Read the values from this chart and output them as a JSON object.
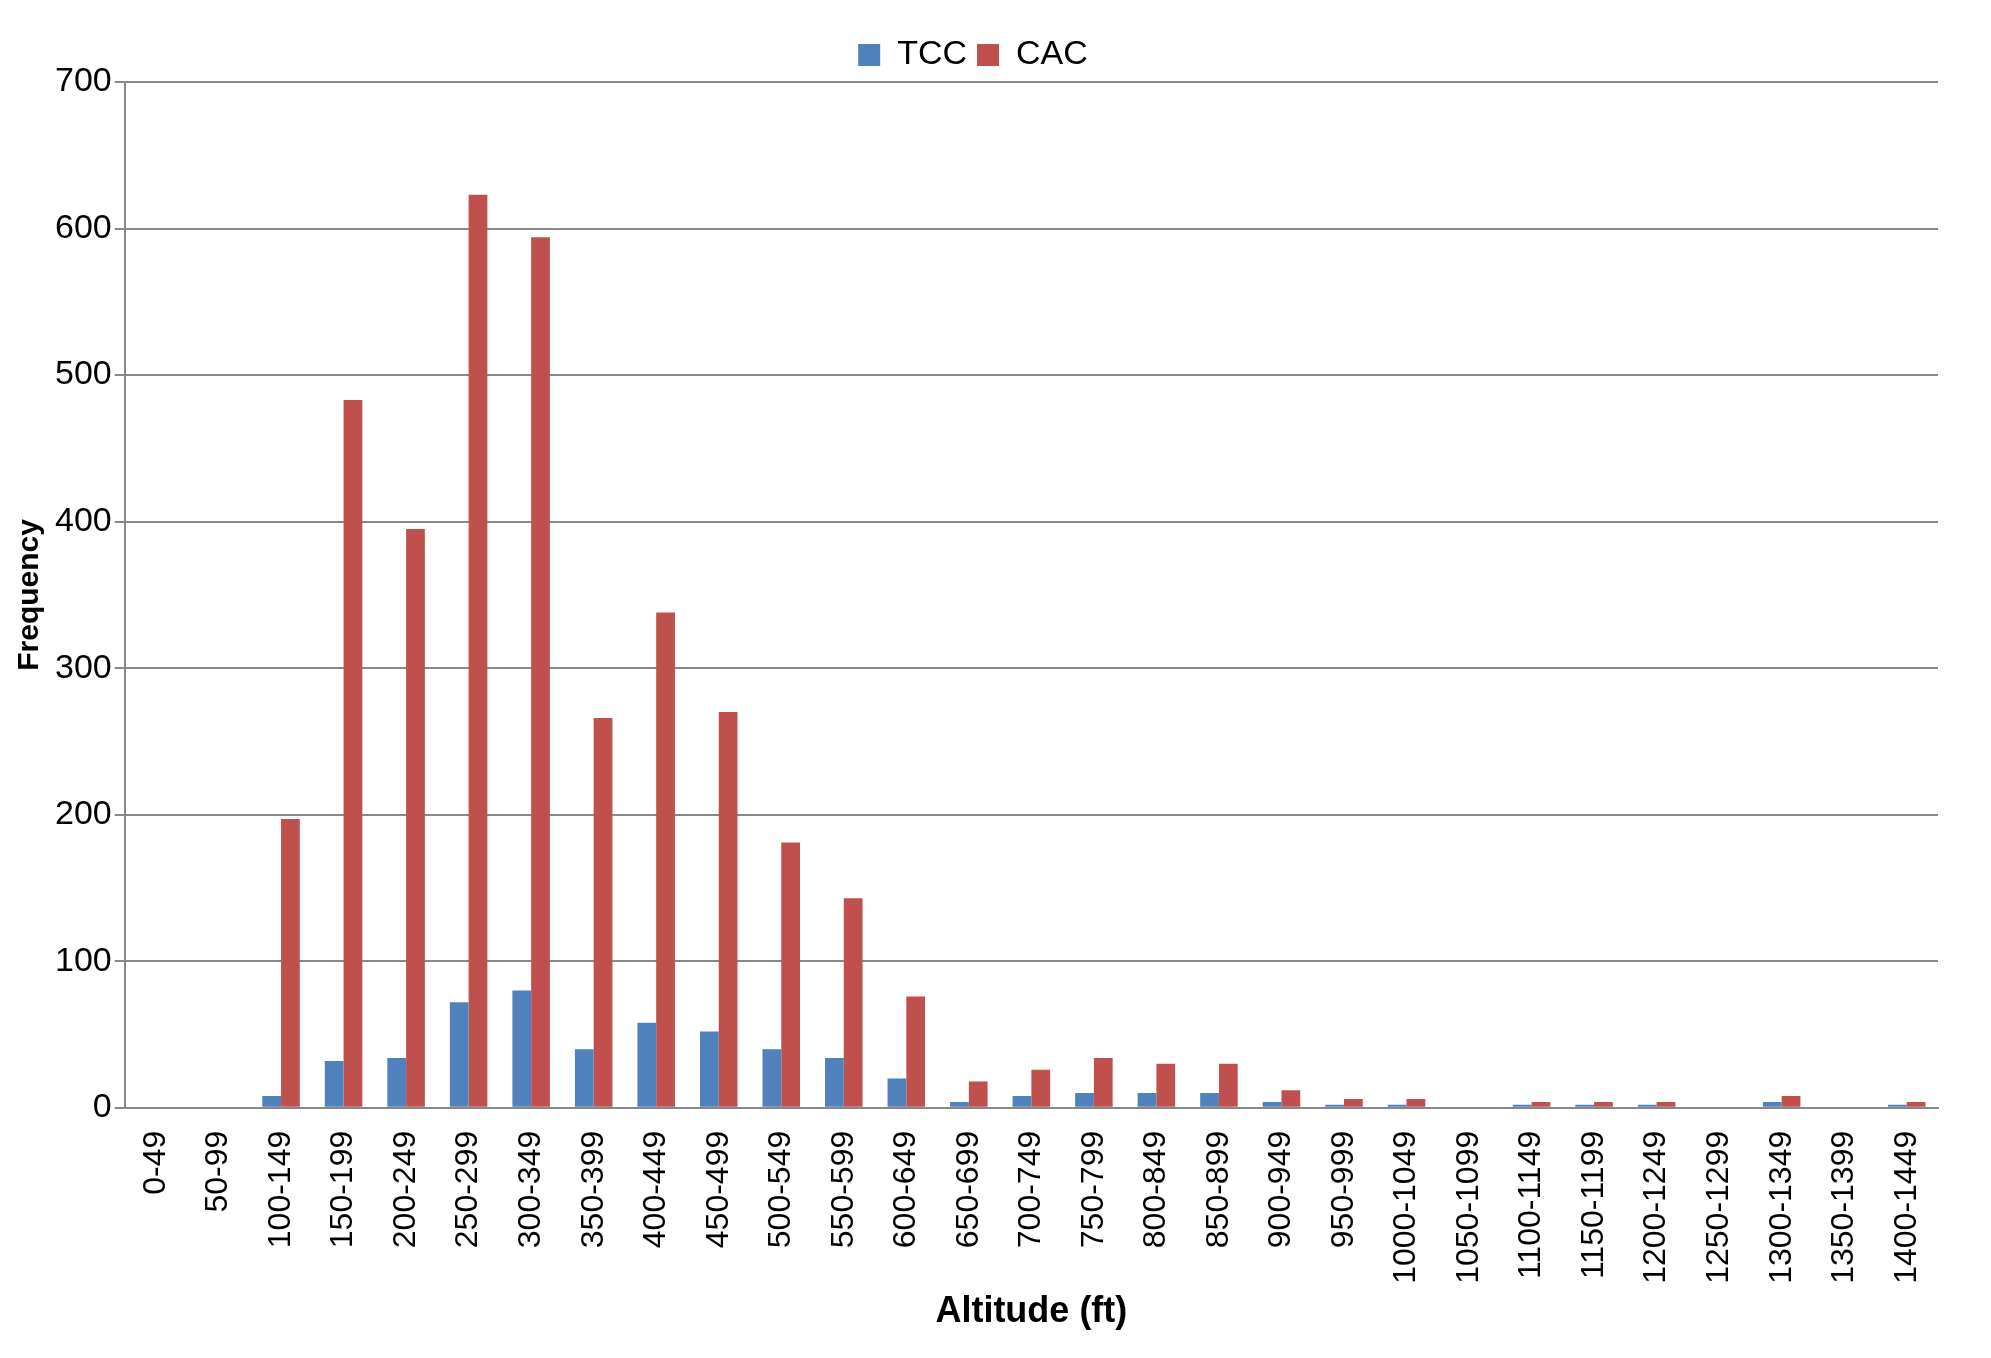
{
  "chart_data": {
    "type": "bar",
    "xlabel": "Altitude (ft)",
    "ylabel": "Frequency",
    "categories": [
      "0-49",
      "50-99",
      "100-149",
      "150-199",
      "200-249",
      "250-299",
      "300-349",
      "350-399",
      "400-449",
      "450-499",
      "500-549",
      "550-599",
      "600-649",
      "650-699",
      "700-749",
      "750-799",
      "800-849",
      "850-899",
      "900-949",
      "950-999",
      "1000-1049",
      "1050-1099",
      "1100-1149",
      "1150-1199",
      "1200-1249",
      "1250-1299",
      "1300-1349",
      "1350-1399",
      "1400-1449"
    ],
    "series": [
      {
        "name": "TCC",
        "color": "#4f81bd",
        "values": [
          0,
          0,
          8,
          32,
          34,
          72,
          80,
          40,
          58,
          52,
          40,
          34,
          20,
          4,
          8,
          10,
          10,
          10,
          4,
          2,
          2,
          0,
          2,
          2,
          2,
          0,
          4,
          0,
          2
        ]
      },
      {
        "name": "CAC",
        "color": "#c0504d",
        "values": [
          0,
          0,
          197,
          483,
          395,
          623,
          594,
          266,
          338,
          270,
          181,
          143,
          76,
          18,
          26,
          34,
          30,
          30,
          12,
          6,
          6,
          0,
          4,
          4,
          4,
          0,
          8,
          0,
          4
        ]
      }
    ],
    "ylim": [
      0,
      700
    ],
    "yticks": [
      0,
      100,
      200,
      300,
      400,
      500,
      600,
      700
    ],
    "grid": "y",
    "legend": "top"
  }
}
